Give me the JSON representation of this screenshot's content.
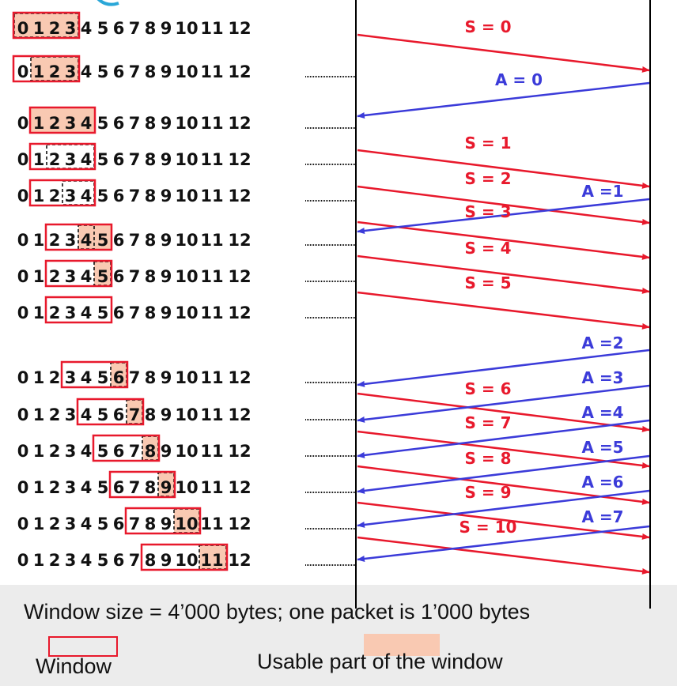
{
  "footer": {
    "caption": "Window size = 4’000 bytes; one packet is 1’000 bytes",
    "legend_window": "Window",
    "legend_usable": "Usable part of the window"
  },
  "colors": {
    "send": "#e8192c",
    "ack": "#3b3bd9",
    "window_border": "#e8192c",
    "usable_fill": "#f9c9b2",
    "timeline": "#000000"
  },
  "rows": [
    {
      "win_start": 0,
      "usable": [
        0,
        1,
        2,
        3
      ],
      "dashed": [
        0,
        1,
        2,
        3
      ]
    },
    {
      "win_start": 0,
      "usable": [
        1,
        2,
        3
      ],
      "dashed": [
        1,
        2,
        3
      ]
    },
    {
      "win_start": 1,
      "usable": [
        1,
        2,
        3,
        4
      ],
      "dashed": []
    },
    {
      "win_start": 1,
      "usable": [],
      "dashed": [
        2,
        3,
        4
      ]
    },
    {
      "win_start": 1,
      "usable": [],
      "dashed": [
        3,
        4
      ]
    },
    {
      "win_start": 2,
      "usable": [
        4,
        5
      ],
      "dashed": [
        4
      ]
    },
    {
      "win_start": 2,
      "usable": [
        5
      ],
      "dashed": [
        5
      ]
    },
    {
      "win_start": 2,
      "usable": [],
      "dashed": []
    },
    {
      "win_start": 3,
      "usable": [
        6
      ],
      "dashed": [
        6
      ]
    },
    {
      "win_start": 4,
      "usable": [
        7
      ],
      "dashed": [
        7
      ]
    },
    {
      "win_start": 5,
      "usable": [
        8
      ],
      "dashed": [
        8
      ]
    },
    {
      "win_start": 6,
      "usable": [
        9
      ],
      "dashed": [
        9
      ]
    },
    {
      "win_start": 7,
      "usable": [
        10
      ],
      "dashed": [
        10
      ]
    },
    {
      "win_start": 8,
      "usable": [
        11
      ],
      "dashed": [
        11
      ]
    }
  ],
  "numbers": [
    "0",
    "1",
    "2",
    "3",
    "4",
    "5",
    "6",
    "7",
    "8",
    "9",
    "10",
    "11",
    "12"
  ],
  "sends": [
    {
      "label": "S = 0"
    },
    {
      "label": "S = 1"
    },
    {
      "label": "S = 2"
    },
    {
      "label": "S = 3"
    },
    {
      "label": "S = 4"
    },
    {
      "label": "S = 5"
    },
    {
      "label": "S = 6"
    },
    {
      "label": "S = 7"
    },
    {
      "label": "S = 8"
    },
    {
      "label": "S = 9"
    },
    {
      "label": "S = 10"
    }
  ],
  "acks": [
    {
      "label": "A = 0"
    },
    {
      "label": "A =1"
    },
    {
      "label": "A =2"
    },
    {
      "label": "A =3"
    },
    {
      "label": "A =4"
    },
    {
      "label": "A =5"
    },
    {
      "label": "A =6"
    },
    {
      "label": "A =7"
    }
  ]
}
